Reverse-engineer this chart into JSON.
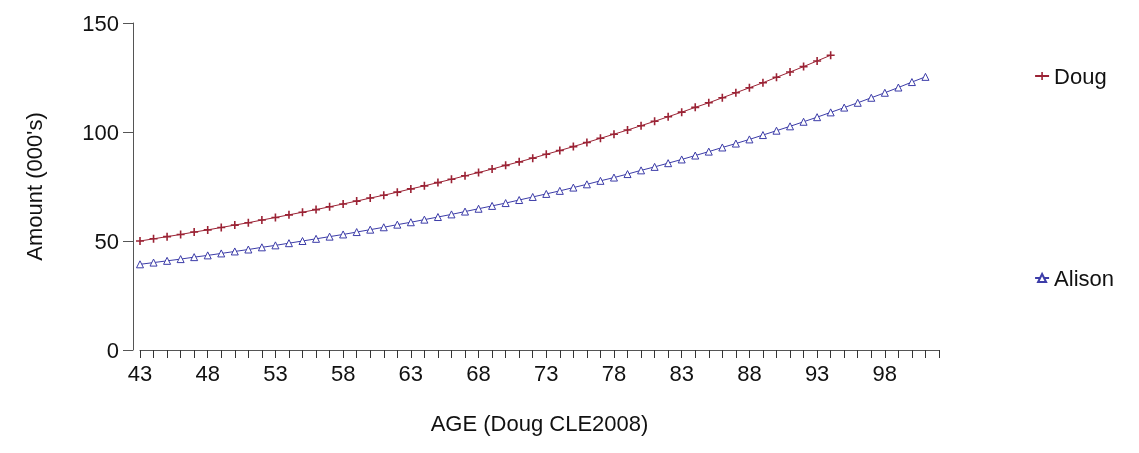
{
  "chart_data": {
    "type": "line",
    "xlabel": "AGE (Doug CLE2008)",
    "ylabel": "Amount (000's)",
    "xlim": [
      43,
      102
    ],
    "xticks": [
      43,
      {
        "value": 44,
        "label": null
      },
      {
        "value": 45,
        "label": null
      },
      {
        "value": 46,
        "label": null
      },
      {
        "value": 47,
        "label": null
      },
      48,
      {
        "value": 49,
        "label": null
      },
      {
        "value": 50,
        "label": null
      },
      {
        "value": 51,
        "label": null
      },
      {
        "value": 52,
        "label": null
      },
      53,
      {
        "value": 54,
        "label": null
      },
      {
        "value": 55,
        "label": null
      },
      {
        "value": 56,
        "label": null
      },
      {
        "value": 57,
        "label": null
      },
      58,
      {
        "value": 59,
        "label": null
      },
      {
        "value": 60,
        "label": null
      },
      {
        "value": 61,
        "label": null
      },
      {
        "value": 62,
        "label": null
      },
      63,
      {
        "value": 64,
        "label": null
      },
      {
        "value": 65,
        "label": null
      },
      {
        "value": 66,
        "label": null
      },
      {
        "value": 67,
        "label": null
      },
      68,
      {
        "value": 69,
        "label": null
      },
      {
        "value": 70,
        "label": null
      },
      {
        "value": 71,
        "label": null
      },
      {
        "value": 72,
        "label": null
      },
      73,
      {
        "value": 74,
        "label": null
      },
      {
        "value": 75,
        "label": null
      },
      {
        "value": 76,
        "label": null
      },
      {
        "value": 77,
        "label": null
      },
      78,
      {
        "value": 79,
        "label": null
      },
      {
        "value": 80,
        "label": null
      },
      {
        "value": 81,
        "label": null
      },
      {
        "value": 82,
        "label": null
      },
      83,
      {
        "value": 84,
        "label": null
      },
      {
        "value": 85,
        "label": null
      },
      {
        "value": 86,
        "label": null
      },
      {
        "value": 87,
        "label": null
      },
      88,
      {
        "value": 89,
        "label": null
      },
      {
        "value": 90,
        "label": null
      },
      {
        "value": 91,
        "label": null
      },
      {
        "value": 92,
        "label": null
      },
      93,
      {
        "value": 94,
        "label": null
      },
      {
        "value": 95,
        "label": null
      },
      {
        "value": 96,
        "label": null
      },
      {
        "value": 97,
        "label": null
      },
      98,
      {
        "value": 99,
        "label": null
      },
      {
        "value": 100,
        "label": null
      },
      {
        "value": 101,
        "label": null
      },
      {
        "value": 102,
        "label": null
      }
    ],
    "ylim": [
      0,
      150
    ],
    "yticks": [
      0,
      50,
      100,
      150
    ],
    "legend": "right",
    "series": [
      {
        "name": "Doug",
        "color": "#9b2335",
        "marker": "cross",
        "x": [
          43,
          44,
          45,
          46,
          47,
          48,
          49,
          50,
          51,
          52,
          53,
          54,
          55,
          56,
          57,
          58,
          59,
          60,
          61,
          62,
          63,
          64,
          65,
          66,
          67,
          68,
          69,
          70,
          71,
          72,
          73,
          74,
          75,
          76,
          77,
          78,
          79,
          80,
          81,
          82,
          83,
          84,
          85,
          86,
          87,
          88,
          89,
          90,
          91,
          92,
          93,
          94
        ],
        "values": [
          50.0,
          51.0,
          52.0,
          53.0,
          54.1,
          55.1,
          56.2,
          57.3,
          58.4,
          59.6,
          60.8,
          62.0,
          63.2,
          64.4,
          65.7,
          67.0,
          68.3,
          69.7,
          71.0,
          72.4,
          73.9,
          75.3,
          76.8,
          78.3,
          79.9,
          81.4,
          83.0,
          84.7,
          86.3,
          88.0,
          89.8,
          91.5,
          93.3,
          95.2,
          97.1,
          99.0,
          100.9,
          102.9,
          104.9,
          107.0,
          109.1,
          111.3,
          113.4,
          115.7,
          118.0,
          120.3,
          122.6,
          125.1,
          127.5,
          130.0,
          132.6,
          135.2
        ]
      },
      {
        "name": "Alison",
        "color": "#3c3ca8",
        "marker": "triangle",
        "x": [
          43,
          44,
          45,
          46,
          47,
          48,
          49,
          50,
          51,
          52,
          53,
          54,
          55,
          56,
          57,
          58,
          59,
          60,
          61,
          62,
          63,
          64,
          65,
          66,
          67,
          68,
          69,
          70,
          71,
          72,
          73,
          74,
          75,
          76,
          77,
          78,
          79,
          80,
          81,
          82,
          83,
          84,
          85,
          86,
          87,
          88,
          89,
          90,
          91,
          92,
          93,
          94,
          95,
          96,
          97,
          98,
          99,
          100,
          101
        ],
        "values": [
          39.3,
          40.1,
          40.9,
          41.7,
          42.6,
          43.4,
          44.3,
          45.2,
          46.1,
          47.1,
          48.0,
          49.0,
          50.0,
          51.0,
          52.0,
          53.0,
          54.1,
          55.2,
          56.3,
          57.5,
          58.6,
          59.8,
          61.0,
          62.2,
          63.5,
          64.8,
          66.1,
          67.4,
          68.8,
          70.2,
          71.6,
          73.0,
          74.5,
          76.0,
          77.6,
          79.1,
          80.7,
          82.4,
          84.0,
          85.7,
          87.4,
          89.2,
          91.0,
          92.9,
          94.7,
          96.6,
          98.6,
          100.6,
          102.6,
          104.7,
          106.8,
          109.0,
          111.2,
          113.4,
          115.7,
          118.0,
          120.4,
          122.9,
          125.3
        ]
      }
    ]
  }
}
